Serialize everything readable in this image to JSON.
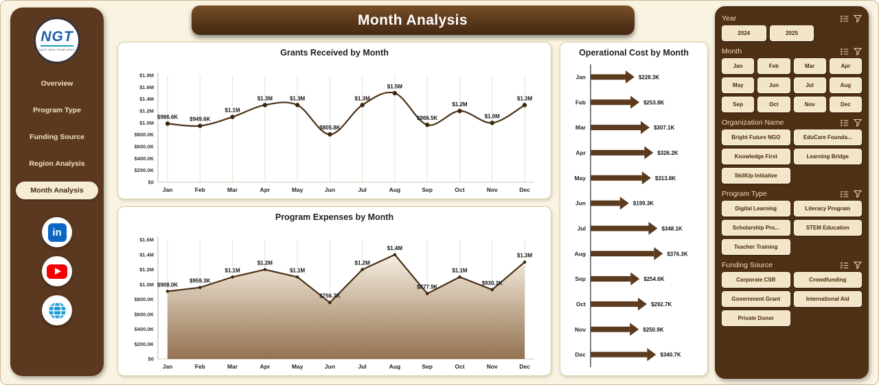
{
  "sidebar": {
    "logo_text": "NGT",
    "logo_subtext": "NEXT NEW TEMPLATES",
    "items": [
      {
        "label": "Overview",
        "active": false
      },
      {
        "label": "Program Type",
        "active": false
      },
      {
        "label": "Funding Source",
        "active": false
      },
      {
        "label": "Region Analysis",
        "active": false
      },
      {
        "label": "Month Analysis",
        "active": true
      }
    ],
    "social_icons": [
      "linkedin",
      "youtube",
      "web"
    ]
  },
  "header": {
    "title": "Month Analysis"
  },
  "chart_data": [
    {
      "type": "line",
      "title": "Grants Received by Month",
      "categories": [
        "Jan",
        "Feb",
        "Mar",
        "Apr",
        "May",
        "Jun",
        "Jul",
        "Aug",
        "Sep",
        "Oct",
        "Nov",
        "Dec"
      ],
      "values_k": [
        986.6,
        949.6,
        1100,
        1300,
        1300,
        805.8,
        1300,
        1500,
        966.5,
        1200,
        1000,
        1300
      ],
      "labels": [
        "$986.6K",
        "$949.6K",
        "$1.1M",
        "$1.3M",
        "$1.3M",
        "$805.8K",
        "$1.3M",
        "$1.5M",
        "$966.5K",
        "$1.2M",
        "$1.0M",
        "$1.3M"
      ],
      "ylim_k": [
        0,
        1800
      ],
      "yticks": [
        "$0",
        "$200.0K",
        "$400.0K",
        "$600.0K",
        "$800.0K",
        "$1.0M",
        "$1.2M",
        "$1.4M",
        "$1.6M",
        "$1.8M"
      ],
      "grid": true,
      "line_color": "#4a2f15"
    },
    {
      "type": "area",
      "title": "Program Expenses by Month",
      "categories": [
        "Jan",
        "Feb",
        "Mar",
        "Apr",
        "May",
        "Jun",
        "Jul",
        "Aug",
        "Sep",
        "Oct",
        "Nov",
        "Dec"
      ],
      "values_k": [
        908.0,
        959.3,
        1100,
        1200,
        1100,
        756.7,
        1200,
        1400,
        877.9,
        1100,
        930.3,
        1300
      ],
      "labels": [
        "$908.0K",
        "$959.3K",
        "$1.1M",
        "$1.2M",
        "$1.1M",
        "$756.7K",
        "$1.2M",
        "$1.4M",
        "$877.9K",
        "$1.1M",
        "$930.3K",
        "$1.3M"
      ],
      "ylim_k": [
        0,
        1600
      ],
      "yticks": [
        "$0",
        "$200.0K",
        "$400.0K",
        "$600.0K",
        "$800.0K",
        "$1.0M",
        "$1.2M",
        "$1.4M",
        "$1.6M"
      ],
      "grid": true,
      "line_color": "#4a2f15",
      "area_top_color": "#f7efe0",
      "area_bottom_color": "#8d6a47"
    },
    {
      "type": "bar",
      "title": "Operational Cost by Month",
      "orientation": "horizontal",
      "categories": [
        "Jan",
        "Feb",
        "Mar",
        "Apr",
        "May",
        "Jun",
        "Jul",
        "Aug",
        "Sep",
        "Oct",
        "Nov",
        "Dec"
      ],
      "values_k": [
        228.3,
        253.8,
        307.1,
        326.2,
        313.8,
        199.3,
        348.1,
        376.3,
        254.6,
        292.7,
        250.9,
        340.7
      ],
      "labels": [
        "$228.3K",
        "$253.8K",
        "$307.1K",
        "$326.2K",
        "$313.8K",
        "$199.3K",
        "$348.1K",
        "$376.3K",
        "$254.6K",
        "$292.7K",
        "$250.9K",
        "$340.7K"
      ],
      "xlim_k": [
        0,
        400
      ],
      "bar_color": "#5C3A1E"
    }
  ],
  "filters": {
    "groups": [
      {
        "id": "year",
        "label": "Year",
        "cols": 3,
        "items": [
          "2024",
          "2025"
        ]
      },
      {
        "id": "month",
        "label": "Month",
        "cols": 4,
        "items": [
          "Jan",
          "Feb",
          "Mar",
          "Apr",
          "May",
          "Jun",
          "Jul",
          "Aug",
          "Sep",
          "Oct",
          "Nov",
          "Dec"
        ]
      },
      {
        "id": "organization-name",
        "label": "Organization Name",
        "cols": 2,
        "items": [
          "Bright Future NGO",
          "EduCare Founda...",
          "Knowledge First",
          "Learning Bridge",
          "SkillUp Initiative"
        ]
      },
      {
        "id": "program-type",
        "label": "Program Type",
        "cols": 2,
        "items": [
          "Digital Learning",
          "Literacy Program",
          "Scholarship Pro...",
          "STEM Education",
          "Teacher Training"
        ]
      },
      {
        "id": "funding-source",
        "label": "Funding Source",
        "cols": 2,
        "items": [
          "Corporate CSR",
          "Crowdfunding",
          "Government Grant",
          "International Aid",
          "Private Donor"
        ]
      }
    ]
  },
  "colors": {
    "accent_brown": "#5C3A1E",
    "panel_brown": "#4e3015",
    "cream_button": "#F3E5C8",
    "page_background": "#FAF3E1",
    "linkedin_blue": "#0A66C2",
    "youtube_red": "#F50000",
    "globe_blue": "#1c9ad6"
  }
}
